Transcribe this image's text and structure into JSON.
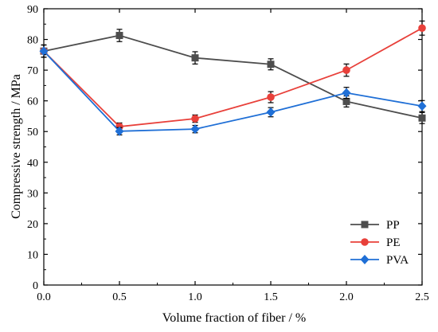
{
  "chart_data": {
    "type": "line",
    "title": "",
    "xlabel": "Volume fraction of fiber / %",
    "ylabel": "Compressive strength / MPa",
    "xlim": [
      0.0,
      2.5
    ],
    "ylim": [
      0,
      90
    ],
    "x_ticks": [
      "0.0",
      "0.5",
      "1.0",
      "1.5",
      "2.0",
      "2.5"
    ],
    "y_ticks": [
      "0",
      "10",
      "20",
      "30",
      "40",
      "50",
      "60",
      "70",
      "80",
      "90"
    ],
    "grid": false,
    "legend_position": "bottom-right",
    "x": [
      0.0,
      0.5,
      1.0,
      1.5,
      2.0,
      2.5
    ],
    "series": [
      {
        "name": "PP",
        "color": "#4d4d4d",
        "marker": "square",
        "values": [
          76.2,
          81.3,
          74.0,
          71.9,
          59.8,
          54.4
        ],
        "errors": [
          2.0,
          2.0,
          2.0,
          1.8,
          1.8,
          1.8
        ]
      },
      {
        "name": "PE",
        "color": "#e8403a",
        "marker": "circle",
        "values": [
          76.2,
          51.6,
          54.2,
          61.2,
          70.0,
          83.7
        ],
        "errors": [
          2.0,
          1.2,
          1.2,
          1.8,
          2.0,
          2.3
        ]
      },
      {
        "name": "PVA",
        "color": "#1f6fd6",
        "marker": "diamond",
        "values": [
          76.2,
          50.1,
          50.8,
          56.3,
          62.6,
          58.3
        ],
        "errors": [
          2.0,
          1.2,
          1.2,
          1.5,
          1.8,
          1.8
        ]
      }
    ]
  }
}
